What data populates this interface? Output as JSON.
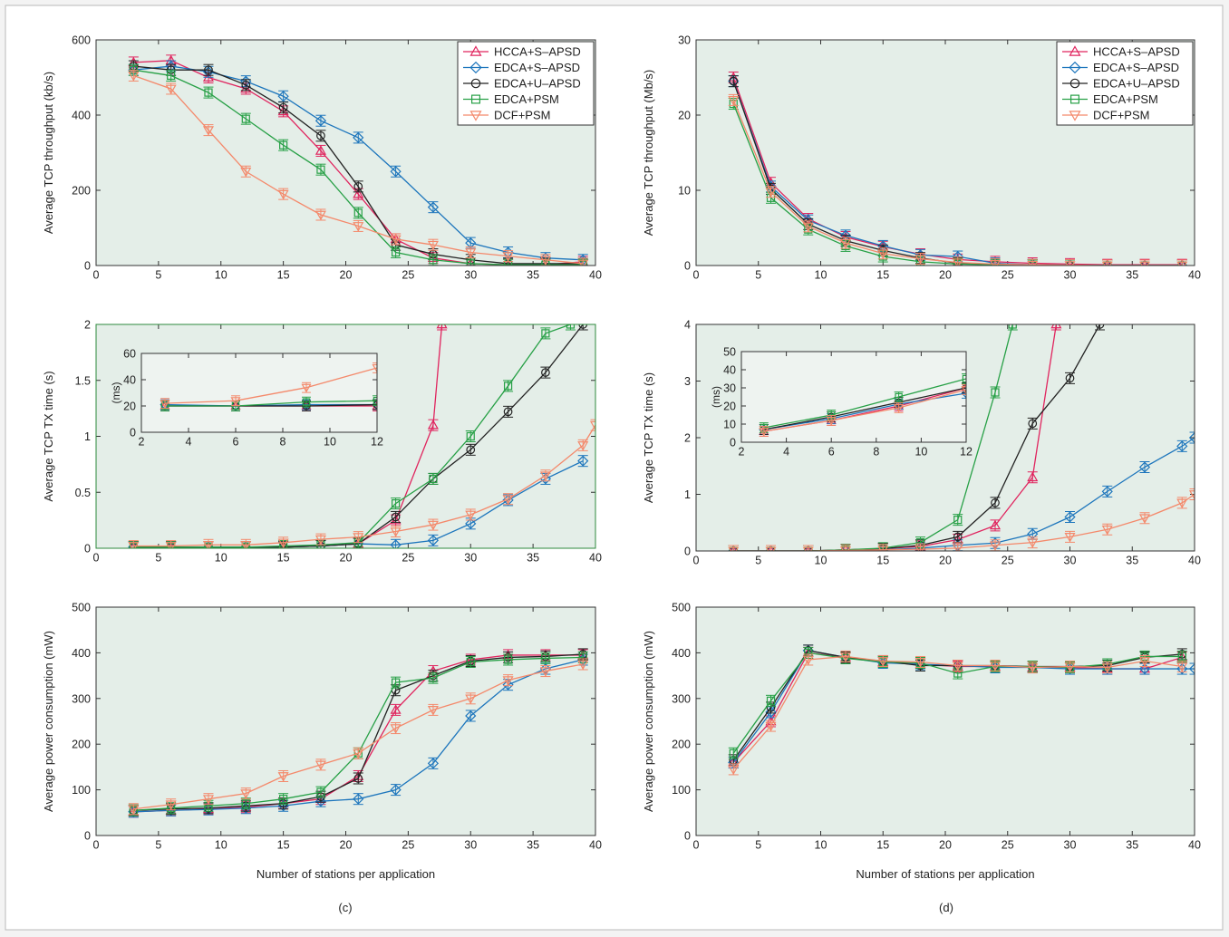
{
  "figure": {
    "shared_xlabel": "Number of stations per application",
    "subfigure_labels": [
      "(c)",
      "(d)"
    ],
    "colors": {
      "HCCA+S–APSD": "#e0245e",
      "EDCA+S–APSD": "#1c75bc",
      "EDCA+U–APSD": "#222222",
      "EDCA+PSM": "#27a046",
      "DCF+PSM": "#f4896b",
      "panel_bg": "#e4eee8",
      "inset_bg": "#eef3f0"
    },
    "markers": {
      "HCCA+S–APSD": "triangle-up",
      "EDCA+S–APSD": "diamond",
      "EDCA+U–APSD": "circle",
      "EDCA+PSM": "square",
      "DCF+PSM": "triangle-down"
    }
  },
  "chart_data": [
    {
      "id": "c-throughput",
      "type": "line",
      "ylabel": "Average TCP throughput (kb/s)",
      "xlabel": "",
      "xlim": [
        0,
        40
      ],
      "ylim": [
        0,
        600
      ],
      "xticks": [
        0,
        5,
        10,
        15,
        20,
        25,
        30,
        35,
        40
      ],
      "yticks": [
        0,
        200,
        400,
        600
      ],
      "legend": "top-right",
      "x": [
        3,
        6,
        9,
        12,
        15,
        18,
        21,
        24,
        27,
        30,
        33,
        36,
        39
      ],
      "series": [
        {
          "name": "HCCA+S–APSD",
          "values": [
            540,
            545,
            500,
            470,
            410,
            305,
            190,
            70,
            20,
            5,
            2,
            2,
            10
          ]
        },
        {
          "name": "EDCA+S–APSD",
          "values": [
            520,
            530,
            515,
            490,
            450,
            385,
            340,
            250,
            155,
            60,
            35,
            20,
            15
          ]
        },
        {
          "name": "EDCA+U–APSD",
          "values": [
            530,
            520,
            520,
            480,
            420,
            345,
            210,
            55,
            30,
            15,
            5,
            5,
            5
          ]
        },
        {
          "name": "EDCA+PSM",
          "values": [
            520,
            505,
            460,
            390,
            320,
            255,
            140,
            35,
            15,
            5,
            2,
            2,
            2
          ]
        },
        {
          "name": "DCF+PSM",
          "values": [
            505,
            470,
            360,
            250,
            190,
            135,
            105,
            70,
            55,
            35,
            25,
            15,
            5
          ]
        }
      ]
    },
    {
      "id": "d-throughput",
      "type": "line",
      "ylabel": "Average TCP throughput (Mb/s)",
      "xlabel": "",
      "xlim": [
        0,
        40
      ],
      "ylim": [
        0,
        30
      ],
      "xticks": [
        0,
        5,
        10,
        15,
        20,
        25,
        30,
        35,
        40
      ],
      "yticks": [
        0,
        10,
        20,
        30
      ],
      "legend": "top-right",
      "x": [
        3,
        6,
        9,
        12,
        15,
        18,
        21,
        24,
        27,
        30,
        33,
        36,
        39
      ],
      "series": [
        {
          "name": "HCCA+S–APSD",
          "values": [
            25,
            11,
            6.2,
            3.8,
            2.5,
            1.5,
            0.8,
            0.5,
            0.3,
            0.2,
            0.1,
            0.1,
            0.1
          ]
        },
        {
          "name": "EDCA+S–APSD",
          "values": [
            24.5,
            10.5,
            6.0,
            4.0,
            2.6,
            1.4,
            1.2,
            0.3,
            0.1,
            0.05,
            0,
            0,
            0
          ]
        },
        {
          "name": "EDCA+U–APSD",
          "values": [
            24.5,
            10.2,
            5.5,
            3.3,
            2.0,
            1.0,
            0.3,
            0.1,
            0.05,
            0,
            0,
            0,
            0
          ]
        },
        {
          "name": "EDCA+PSM",
          "values": [
            21.5,
            9.0,
            4.8,
            2.6,
            1.2,
            0.5,
            0.2,
            0.1,
            0,
            0,
            0,
            0,
            0
          ]
        },
        {
          "name": "DCF+PSM",
          "values": [
            22,
            9.8,
            5.2,
            3.0,
            1.6,
            0.9,
            0.4,
            0.2,
            0.1,
            0.05,
            0,
            0,
            0
          ]
        }
      ]
    },
    {
      "id": "c-txtime",
      "type": "line",
      "ylabel": "Average TCP TX time (s)",
      "xlabel": "",
      "xlim": [
        0,
        40
      ],
      "ylim": [
        0,
        2
      ],
      "xticks": [
        0,
        5,
        10,
        15,
        20,
        25,
        30,
        35,
        40
      ],
      "yticks": [
        0,
        0.5,
        1,
        1.5,
        2
      ],
      "x": [
        3,
        6,
        9,
        12,
        15,
        18,
        21,
        24,
        27,
        30,
        33,
        36,
        39
      ],
      "series": [
        {
          "name": "HCCA+S–APSD",
          "x": [
            3,
            6,
            9,
            12,
            15,
            18,
            21,
            24,
            27,
            27.7
          ],
          "values": [
            0.01,
            0.01,
            0.01,
            0.01,
            0.01,
            0.02,
            0.04,
            0.25,
            1.1,
            2.0
          ]
        },
        {
          "name": "EDCA+S–APSD",
          "values": [
            0.01,
            0.01,
            0.01,
            0.01,
            0.01,
            0.02,
            0.04,
            0.03,
            0.07,
            0.22,
            0.43,
            0.62,
            0.78
          ]
        },
        {
          "name": "EDCA+U–APSD",
          "values": [
            0.01,
            0.01,
            0.01,
            0.01,
            0.01,
            0.02,
            0.04,
            0.28,
            0.62,
            0.88,
            1.22,
            1.57,
            2.0
          ]
        },
        {
          "name": "EDCA+PSM",
          "x": [
            3,
            6,
            9,
            12,
            15,
            18,
            21,
            24,
            27,
            30,
            33,
            36,
            38
          ],
          "values": [
            0.01,
            0.01,
            0.01,
            0.01,
            0.02,
            0.03,
            0.05,
            0.4,
            0.62,
            1.0,
            1.45,
            1.92,
            2.0
          ]
        },
        {
          "name": "DCF+PSM",
          "x": [
            3,
            6,
            9,
            12,
            15,
            18,
            21,
            24,
            27,
            30,
            33,
            36,
            39,
            40
          ],
          "values": [
            0.02,
            0.02,
            0.03,
            0.03,
            0.05,
            0.08,
            0.1,
            0.15,
            0.21,
            0.3,
            0.44,
            0.65,
            0.92,
            1.1
          ]
        }
      ],
      "inset": {
        "ylabel": "(ms)",
        "xlim": [
          2,
          12
        ],
        "ylim": [
          0,
          60
        ],
        "xticks": [
          2,
          4,
          6,
          8,
          10,
          12
        ],
        "yticks": [
          0,
          20,
          40,
          60
        ],
        "x": [
          3,
          6,
          9,
          12
        ],
        "series": [
          {
            "name": "HCCA+S–APSD",
            "values": [
              20,
              20,
              20,
              20
            ]
          },
          {
            "name": "EDCA+S–APSD",
            "values": [
              21,
              20,
              21,
              21
            ]
          },
          {
            "name": "EDCA+U–APSD",
            "values": [
              20,
              20,
              20,
              21
            ]
          },
          {
            "name": "EDCA+PSM",
            "values": [
              20,
              20,
              23,
              24
            ]
          },
          {
            "name": "DCF+PSM",
            "values": [
              22,
              24,
              34,
              49
            ]
          }
        ]
      }
    },
    {
      "id": "d-txtime",
      "type": "line",
      "ylabel": "Average TCP TX time (s)",
      "xlabel": "",
      "xlim": [
        0,
        40
      ],
      "ylim": [
        0,
        4
      ],
      "xticks": [
        0,
        5,
        10,
        15,
        20,
        25,
        30,
        35,
        40
      ],
      "yticks": [
        0,
        1,
        2,
        3,
        4
      ],
      "x": [
        3,
        6,
        9,
        12,
        15,
        18,
        21,
        24,
        27,
        30,
        33,
        36,
        39
      ],
      "series": [
        {
          "name": "HCCA+S–APSD",
          "x": [
            3,
            6,
            9,
            12,
            15,
            18,
            21,
            24,
            27,
            28.9
          ],
          "values": [
            0,
            0,
            0,
            0.02,
            0.04,
            0.08,
            0.2,
            0.45,
            1.3,
            4.0
          ]
        },
        {
          "name": "EDCA+S–APSD",
          "x": [
            3,
            6,
            9,
            12,
            15,
            18,
            21,
            24,
            27,
            30,
            33,
            36,
            39,
            40
          ],
          "values": [
            0,
            0,
            0,
            0.01,
            0.02,
            0.05,
            0.1,
            0.14,
            0.3,
            0.6,
            1.05,
            1.48,
            1.85,
            2.0
          ]
        },
        {
          "name": "EDCA+U–APSD",
          "x": [
            3,
            6,
            9,
            12,
            15,
            18,
            21,
            24,
            27,
            30,
            32.4
          ],
          "values": [
            0,
            0,
            0,
            0.02,
            0.04,
            0.1,
            0.25,
            0.85,
            2.25,
            3.05,
            4.0
          ]
        },
        {
          "name": "EDCA+PSM",
          "x": [
            3,
            6,
            9,
            12,
            15,
            18,
            21,
            24,
            25.4
          ],
          "values": [
            0,
            0,
            0,
            0.02,
            0.05,
            0.15,
            0.55,
            2.8,
            4.0
          ]
        },
        {
          "name": "DCF+PSM",
          "x": [
            3,
            6,
            9,
            12,
            15,
            18,
            21,
            24,
            27,
            30,
            33,
            36,
            39,
            40
          ],
          "values": [
            0,
            0,
            0,
            0.01,
            0.02,
            0.03,
            0.05,
            0.1,
            0.15,
            0.25,
            0.38,
            0.58,
            0.85,
            1.0
          ]
        }
      ],
      "inset": {
        "ylabel": "(ms)",
        "xlim": [
          2,
          12
        ],
        "ylim": [
          0,
          50
        ],
        "xticks": [
          2,
          4,
          6,
          8,
          10,
          12
        ],
        "yticks": [
          0,
          10,
          20,
          30,
          40,
          50
        ],
        "x": [
          3,
          6,
          9,
          12
        ],
        "series": [
          {
            "name": "HCCA+S–APSD",
            "values": [
              6,
              12,
              20,
              30
            ]
          },
          {
            "name": "EDCA+S–APSD",
            "values": [
              7,
              13,
              21,
              27
            ]
          },
          {
            "name": "EDCA+U–APSD",
            "values": [
              7,
              14,
              22,
              30
            ]
          },
          {
            "name": "EDCA+PSM",
            "values": [
              8,
              15,
              25,
              35
            ]
          },
          {
            "name": "DCF+PSM",
            "values": [
              6,
              12,
              19,
              29
            ]
          }
        ]
      }
    },
    {
      "id": "c-power",
      "type": "line",
      "ylabel": "Average power consumption (mW)",
      "xlabel": "Number of stations per application",
      "xlim": [
        0,
        40
      ],
      "ylim": [
        0,
        500
      ],
      "xticks": [
        0,
        5,
        10,
        15,
        20,
        25,
        30,
        35,
        40
      ],
      "yticks": [
        0,
        100,
        200,
        300,
        400,
        500
      ],
      "x": [
        3,
        6,
        9,
        12,
        15,
        18,
        21,
        24,
        27,
        30,
        33,
        36,
        39
      ],
      "series": [
        {
          "name": "HCCA+S–APSD",
          "values": [
            52,
            55,
            58,
            62,
            70,
            80,
            130,
            275,
            360,
            385,
            395,
            395,
            395
          ]
        },
        {
          "name": "EDCA+S–APSD",
          "values": [
            52,
            55,
            57,
            60,
            65,
            75,
            80,
            100,
            158,
            262,
            330,
            365,
            385
          ]
        },
        {
          "name": "EDCA+U–APSD",
          "values": [
            55,
            58,
            60,
            65,
            70,
            85,
            125,
            318,
            350,
            382,
            390,
            392,
            397
          ]
        },
        {
          "name": "EDCA+PSM",
          "values": [
            55,
            60,
            65,
            70,
            80,
            95,
            180,
            335,
            345,
            380,
            385,
            388,
            390
          ]
        },
        {
          "name": "DCF+PSM",
          "values": [
            58,
            68,
            80,
            92,
            130,
            155,
            180,
            235,
            275,
            300,
            340,
            360,
            375
          ]
        }
      ]
    },
    {
      "id": "d-power",
      "type": "line",
      "ylabel": "Average power consumption (mW)",
      "xlabel": "Number of stations per application",
      "xlim": [
        0,
        40
      ],
      "ylim": [
        0,
        500
      ],
      "xticks": [
        0,
        5,
        10,
        15,
        20,
        25,
        30,
        35,
        40
      ],
      "yticks": [
        0,
        100,
        200,
        300,
        400,
        500
      ],
      "x": [
        3,
        6,
        9,
        12,
        15,
        18,
        21,
        24,
        27,
        30,
        33,
        36,
        39
      ],
      "series": [
        {
          "name": "HCCA+S–APSD",
          "values": [
            160,
            250,
            400,
            390,
            380,
            375,
            370,
            370,
            368,
            368,
            365,
            365,
            390
          ]
        },
        {
          "name": "EDCA+S–APSD",
          "x": [
            3,
            6,
            9,
            12,
            15,
            18,
            21,
            24,
            27,
            30,
            33,
            36,
            39,
            40
          ],
          "values": [
            160,
            270,
            405,
            390,
            378,
            375,
            372,
            368,
            368,
            365,
            365,
            365,
            365,
            365
          ]
        },
        {
          "name": "EDCA+U–APSD",
          "values": [
            165,
            280,
            405,
            390,
            382,
            372,
            372,
            372,
            370,
            370,
            372,
            390,
            397
          ]
        },
        {
          "name": "EDCA+PSM",
          "values": [
            180,
            295,
            400,
            388,
            380,
            378,
            355,
            370,
            370,
            368,
            375,
            392,
            392
          ]
        },
        {
          "name": "DCF+PSM",
          "values": [
            145,
            240,
            385,
            392,
            382,
            380,
            372,
            372,
            368,
            370,
            368,
            382,
            370
          ]
        }
      ]
    }
  ]
}
